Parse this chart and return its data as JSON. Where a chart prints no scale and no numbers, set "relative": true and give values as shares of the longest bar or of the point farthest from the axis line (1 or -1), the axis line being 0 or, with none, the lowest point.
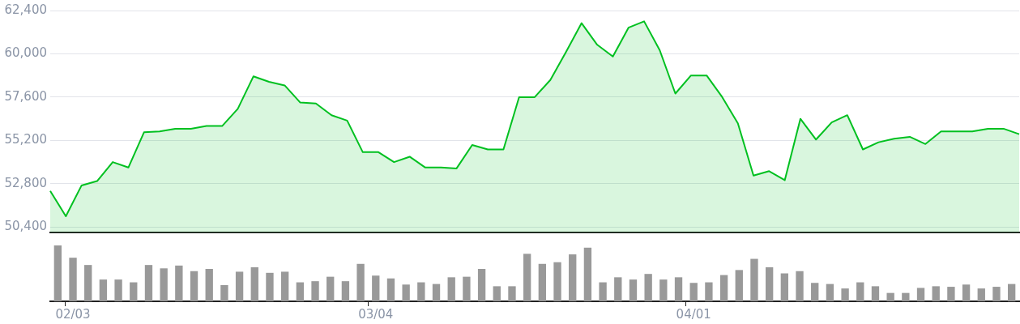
{
  "chart_data": [
    {
      "type": "area",
      "categories": [
        null,
        null,
        null,
        null,
        null,
        null,
        null,
        null,
        null,
        null,
        null,
        null,
        null,
        null,
        null,
        null,
        null,
        null,
        null,
        null,
        null,
        null,
        null,
        null,
        null,
        null,
        null,
        null,
        null,
        null,
        null,
        null,
        null,
        null,
        null,
        null,
        null,
        null,
        null,
        null,
        null,
        null,
        null,
        null,
        null,
        null,
        null,
        null,
        null,
        null,
        null,
        null,
        null,
        null,
        null,
        null,
        null,
        null,
        null,
        null,
        null,
        null,
        null
      ],
      "series": [
        {
          "color": "#00c020",
          "values": [
            52400,
            51000,
            52700,
            52950,
            54000,
            53700,
            55650,
            55700,
            55850,
            55850,
            56000,
            56000,
            56950,
            58750,
            58450,
            58250,
            57300,
            57250,
            56600,
            56300,
            54550,
            54550,
            54000,
            54300,
            53700,
            53700,
            53650,
            54950,
            54700,
            54700,
            57600,
            57600,
            58550,
            60100,
            61700,
            60500,
            59850,
            61450,
            61800,
            60200,
            57800,
            58800,
            58800,
            57600,
            56150,
            53250,
            53500,
            53000,
            56400,
            55250,
            56200,
            56600,
            54700,
            55100,
            55300,
            55400,
            55000,
            55700,
            55700,
            55700,
            55850,
            55850,
            55550
          ]
        }
      ],
      "ylim": [
        50100,
        62400
      ],
      "yticks": [
        {
          "value": 50400,
          "label": "50,400"
        },
        {
          "value": 52800,
          "label": "52,800"
        },
        {
          "value": 55200,
          "label": "55,200"
        },
        {
          "value": 57600,
          "label": "57,600"
        },
        {
          "value": 60000,
          "label": "60,000"
        },
        {
          "value": 62400,
          "label": "62,400"
        }
      ],
      "grid": "y",
      "tick_labels": "y",
      "legend": false,
      "marker": "none"
    },
    {
      "type": "bar",
      "relative": true,
      "categories": [
        null,
        "02/03",
        null,
        null,
        null,
        null,
        null,
        null,
        null,
        null,
        null,
        null,
        null,
        null,
        null,
        null,
        null,
        null,
        null,
        null,
        null,
        "03/04",
        null,
        null,
        null,
        null,
        null,
        null,
        null,
        null,
        null,
        null,
        null,
        null,
        null,
        null,
        null,
        null,
        null,
        null,
        null,
        null,
        "04/01",
        null,
        null,
        null,
        null,
        null,
        null,
        null,
        null,
        null,
        null,
        null,
        null,
        null,
        null,
        null,
        null,
        null,
        null,
        null,
        null,
        null
      ],
      "series": [
        {
          "color": "#999999",
          "values": [
            1.0,
            0.78,
            0.65,
            0.39,
            0.39,
            0.34,
            0.65,
            0.59,
            0.64,
            0.54,
            0.58,
            0.29,
            0.53,
            0.61,
            0.51,
            0.53,
            0.34,
            0.36,
            0.44,
            0.36,
            0.67,
            0.46,
            0.41,
            0.3,
            0.34,
            0.31,
            0.43,
            0.44,
            0.58,
            0.27,
            0.27,
            0.85,
            0.67,
            0.7,
            0.84,
            0.96,
            0.34,
            0.43,
            0.39,
            0.49,
            0.39,
            0.43,
            0.33,
            0.34,
            0.47,
            0.56,
            0.76,
            0.61,
            0.5,
            0.54,
            0.33,
            0.31,
            0.23,
            0.34,
            0.27,
            0.15,
            0.15,
            0.24,
            0.27,
            0.26,
            0.3,
            0.23,
            0.26,
            0.31
          ]
        }
      ],
      "tick_labels": "x",
      "grid": false,
      "legend": false
    }
  ]
}
